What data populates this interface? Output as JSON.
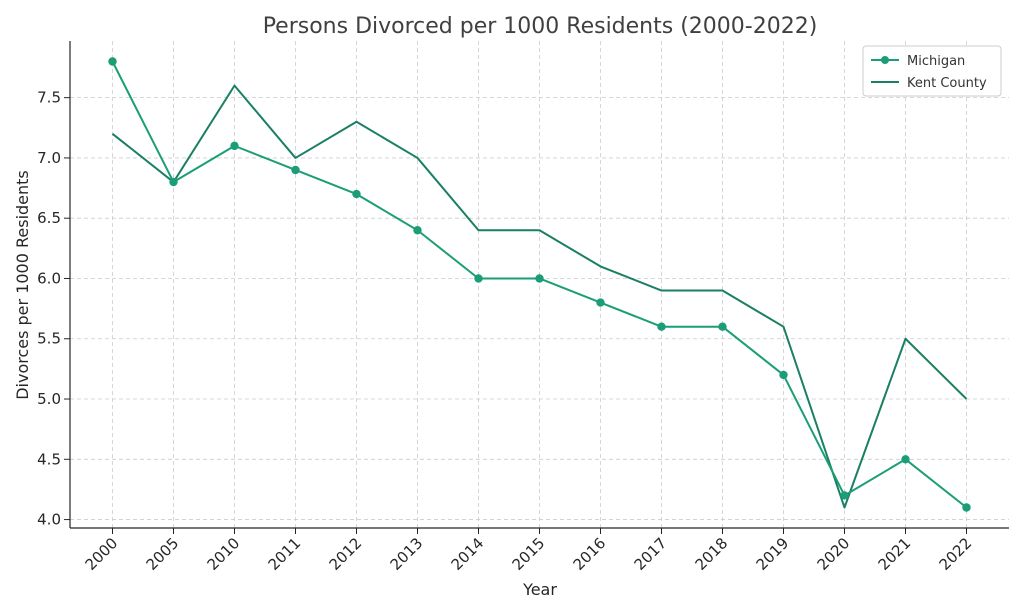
{
  "chart_data": {
    "type": "line",
    "title": "Persons Divorced per 1000 Residents (2000-2022)",
    "xlabel": "Year",
    "ylabel": "Divorces per 1000 Residents",
    "categories": [
      "2000",
      "2005",
      "2010",
      "2011",
      "2012",
      "2013",
      "2014",
      "2015",
      "2016",
      "2017",
      "2018",
      "2019",
      "2020",
      "2021",
      "2022"
    ],
    "ylim": [
      3.93,
      7.97
    ],
    "yticks": [
      4.0,
      4.5,
      5.0,
      5.5,
      6.0,
      6.5,
      7.0,
      7.5
    ],
    "ytick_labels": [
      "4.0",
      "4.5",
      "5.0",
      "5.5",
      "6.0",
      "6.5",
      "7.0",
      "7.5"
    ],
    "grid": true,
    "legend_position": "top-right",
    "series": [
      {
        "name": "Michigan",
        "color": "#1b9e77",
        "marker": true,
        "values": [
          7.8,
          6.8,
          7.1,
          6.9,
          6.7,
          6.4,
          6.0,
          6.0,
          5.8,
          5.6,
          5.6,
          5.2,
          4.2,
          4.5,
          4.1
        ]
      },
      {
        "name": "Kent County",
        "color": "#1a7f64",
        "marker": false,
        "values": [
          7.2,
          6.8,
          7.6,
          7.0,
          7.3,
          7.0,
          6.4,
          6.4,
          6.1,
          5.9,
          5.9,
          5.6,
          4.1,
          5.5,
          5.0
        ]
      }
    ]
  }
}
